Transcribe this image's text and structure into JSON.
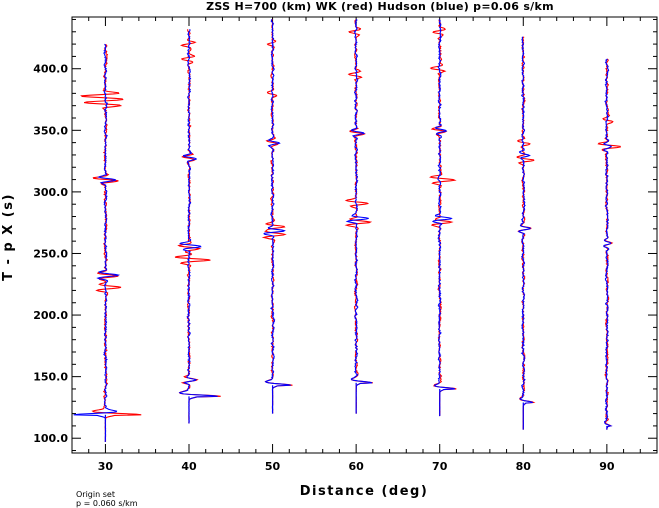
{
  "chart_data": {
    "type": "line",
    "title": "ZSS H=700 (km) WK (red) Hudson (blue) p=0.06 s/km",
    "xlabel": "Distance (deg)",
    "ylabel": "T - p X (s)",
    "xlim": [
      26,
      96
    ],
    "ylim": [
      88,
      442
    ],
    "x_ticks": [
      30,
      40,
      50,
      60,
      70,
      80,
      90
    ],
    "x_tick_labels": [
      "30",
      "40",
      "50",
      "60",
      "70",
      "80",
      "90"
    ],
    "y_ticks": [
      100,
      150,
      200,
      250,
      300,
      350,
      400
    ],
    "y_tick_labels": [
      "100.0",
      "150.0",
      "200.0",
      "250.0",
      "300.0",
      "350.0",
      "400.0"
    ],
    "grid": false,
    "series": [
      {
        "name": "WK",
        "color": "#ff0000"
      },
      {
        "name": "Hudson",
        "color": "#0000ff"
      }
    ],
    "traces": [
      {
        "distance": 30,
        "t_start": 97,
        "t_end": 420,
        "first_arrival": 119,
        "red_events": [
          [
            119,
            4.5
          ],
          [
            222,
            1.8
          ],
          [
            232,
            1.6
          ],
          [
            310,
            1.8
          ],
          [
            372,
            2.6
          ],
          [
            378,
            2.8
          ]
        ],
        "blue_events": [
          [
            119,
            4.0
          ],
          [
            232,
            1.6
          ],
          [
            310,
            1.2
          ]
        ]
      },
      {
        "distance": 40,
        "t_start": 112,
        "t_end": 432,
        "first_arrival": 134,
        "red_events": [
          [
            134,
            4.0
          ],
          [
            147,
            1.0
          ],
          [
            245,
            2.6
          ],
          [
            255,
            1.4
          ],
          [
            328,
            1.0
          ],
          [
            408,
            1.0
          ],
          [
            420,
            0.9
          ]
        ],
        "blue_events": [
          [
            134,
            3.6
          ],
          [
            147,
            0.8
          ],
          [
            256,
            1.5
          ],
          [
            328,
            0.9
          ]
        ]
      },
      {
        "distance": 50,
        "t_start": 120,
        "t_end": 440,
        "first_arrival": 143,
        "red_events": [
          [
            143,
            2.5
          ],
          [
            265,
            1.6
          ],
          [
            272,
            1.4
          ],
          [
            340,
            0.8
          ],
          [
            380,
            0.6
          ],
          [
            420,
            0.5
          ]
        ],
        "blue_events": [
          [
            143,
            2.3
          ],
          [
            268,
            1.5
          ],
          [
            340,
            0.8
          ]
        ]
      },
      {
        "distance": 60,
        "t_start": 120,
        "t_end": 440,
        "first_arrival": 145,
        "red_events": [
          [
            145,
            2.1
          ],
          [
            275,
            1.8
          ],
          [
            291,
            1.6
          ],
          [
            348,
            1.0
          ],
          [
            395,
            1.0
          ],
          [
            430,
            0.8
          ]
        ],
        "blue_events": [
          [
            145,
            2.0
          ],
          [
            278,
            1.4
          ],
          [
            348,
            0.9
          ]
        ]
      },
      {
        "distance": 70,
        "t_start": 118,
        "t_end": 440,
        "first_arrival": 140,
        "red_events": [
          [
            140,
            2.1
          ],
          [
            275,
            1.4
          ],
          [
            310,
            1.8
          ],
          [
            350,
            1.0
          ],
          [
            400,
            1.0
          ],
          [
            430,
            0.9
          ]
        ],
        "blue_events": [
          [
            140,
            1.9
          ],
          [
            278,
            1.4
          ],
          [
            350,
            0.8
          ]
        ]
      },
      {
        "distance": 80,
        "t_start": 107,
        "t_end": 426,
        "first_arrival": 129,
        "red_events": [
          [
            129,
            1.3
          ],
          [
            270,
            0.9
          ],
          [
            326,
            1.2
          ],
          [
            340,
            0.9
          ]
        ],
        "blue_events": [
          [
            129,
            1.2
          ],
          [
            270,
            0.9
          ],
          [
            330,
            0.8
          ]
        ]
      },
      {
        "distance": 90,
        "t_start": 107,
        "t_end": 408,
        "first_arrival": 110,
        "red_events": [
          [
            110,
            0.5
          ],
          [
            258,
            0.5
          ],
          [
            337,
            1.6
          ],
          [
            358,
            0.7
          ]
        ],
        "blue_events": [
          [
            110,
            0.5
          ],
          [
            258,
            0.6
          ],
          [
            337,
            0.6
          ]
        ]
      }
    ]
  },
  "footnote": {
    "line1": "Origin set",
    "line2": "p = 0.060 s/km"
  }
}
